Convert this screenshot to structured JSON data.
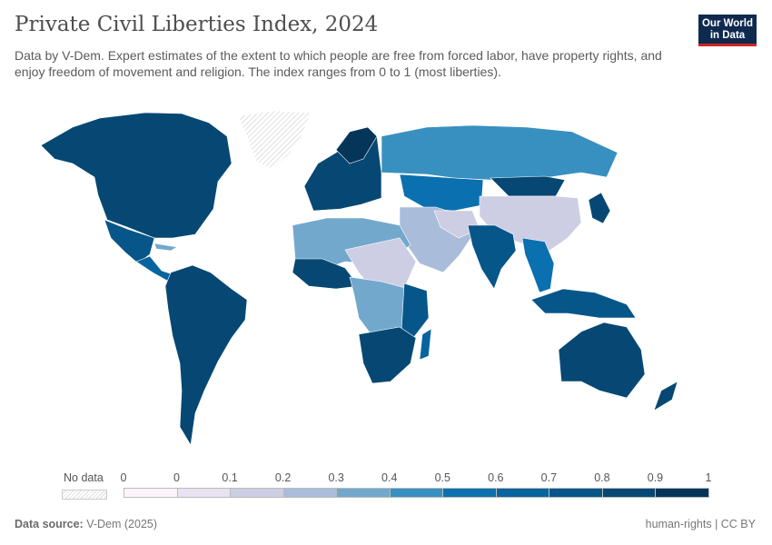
{
  "header": {
    "title": "Private Civil Liberties Index, 2024",
    "subtitle": "Data by V-Dem. Expert estimates of the extent to which people are free from forced labor, have property rights, and enjoy freedom of movement and religion. The index ranges from 0 to 1 (most liberties).",
    "logo_text": "Our World in Data"
  },
  "legend": {
    "no_data_label": "No data",
    "tick_labels": [
      "0",
      "0",
      "0.1",
      "0.2",
      "0.3",
      "0.4",
      "0.5",
      "0.6",
      "0.7",
      "0.8",
      "0.9",
      "1"
    ],
    "bin_colors": [
      "#fcf4f9",
      "#e8e3f0",
      "#cdcde3",
      "#a9bcd9",
      "#73a8cd",
      "#3890c0",
      "#0a70b0",
      "#08649e",
      "#07568a",
      "#064873",
      "#053659"
    ]
  },
  "footer": {
    "source_label": "Data source:",
    "source_value": "V-Dem (2025)",
    "right_text": "human-rights | CC BY"
  },
  "colors": {
    "no_data": "#dddddd",
    "background": "#ffffff",
    "logo_bg": "#0f2a4f",
    "logo_accent": "#ce261e"
  }
}
